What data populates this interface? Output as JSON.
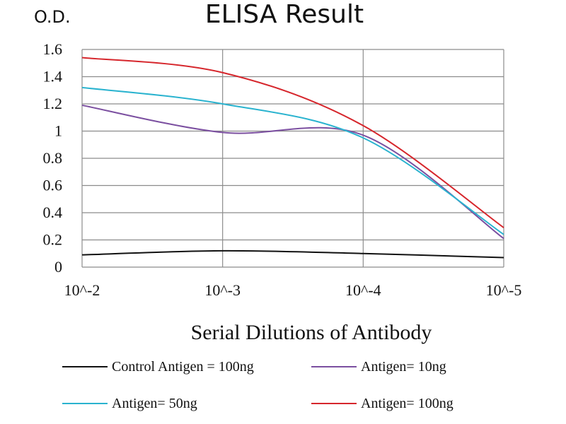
{
  "chart_data": {
    "type": "line",
    "title": "ELISA Result",
    "ylabel": "O.D.",
    "xlabel": "Serial Dilutions  of Antibody",
    "categories": [
      "10^-2",
      "10^-3",
      "10^-4",
      "10^-5"
    ],
    "ylim": [
      0,
      1.6
    ],
    "yticks": [
      "0",
      "0.2",
      "0.4",
      "0.6",
      "0.8",
      "1",
      "1.2",
      "1.4",
      "1.6"
    ],
    "grid": true,
    "legend_position": "bottom",
    "series": [
      {
        "name": "Control Antigen = 100ng",
        "color": "#111111",
        "values": [
          0.09,
          0.12,
          0.1,
          0.07
        ]
      },
      {
        "name": "Antigen= 10ng",
        "color": "#7b4fa0",
        "values": [
          1.19,
          0.99,
          0.97,
          0.21
        ]
      },
      {
        "name": "Antigen= 50ng",
        "color": "#2ab3cf",
        "values": [
          1.32,
          1.2,
          0.95,
          0.24
        ]
      },
      {
        "name": "Antigen= 100ng",
        "color": "#d6262c",
        "values": [
          1.54,
          1.43,
          1.04,
          0.29
        ]
      }
    ]
  }
}
